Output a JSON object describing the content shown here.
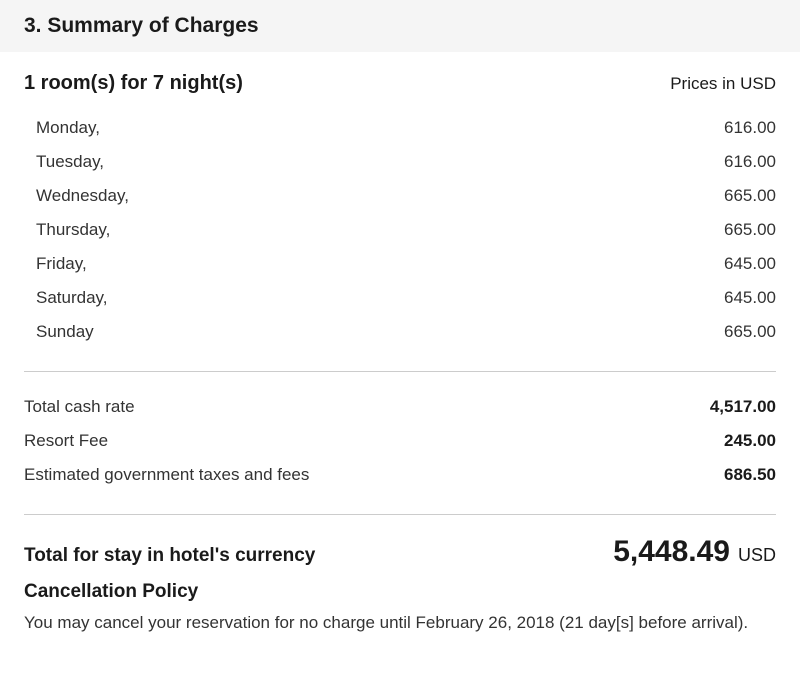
{
  "section": {
    "title": "3. Summary of Charges"
  },
  "summary": {
    "rooms_nights": "1 room(s) for 7 night(s)",
    "currency_note": "Prices in USD"
  },
  "daily_rates": [
    {
      "day": "Monday,",
      "amount": "616.00"
    },
    {
      "day": "Tuesday,",
      "amount": "616.00"
    },
    {
      "day": "Wednesday,",
      "amount": "665.00"
    },
    {
      "day": "Thursday,",
      "amount": "665.00"
    },
    {
      "day": "Friday,",
      "amount": "645.00"
    },
    {
      "day": "Saturday,",
      "amount": "645.00"
    },
    {
      "day": "Sunday",
      "amount": "665.00"
    }
  ],
  "charges": [
    {
      "label": "Total cash rate",
      "amount": "4,517.00"
    },
    {
      "label": "Resort Fee",
      "amount": "245.00"
    },
    {
      "label": "Estimated government taxes and fees",
      "amount": "686.50"
    }
  ],
  "total": {
    "label": "Total for stay in hotel's currency",
    "amount": "5,448.49",
    "currency": "USD"
  },
  "policy": {
    "heading": "Cancellation Policy",
    "text": "You may cancel your reservation for no charge until February 26, 2018 (21 day[s] before arrival)."
  }
}
